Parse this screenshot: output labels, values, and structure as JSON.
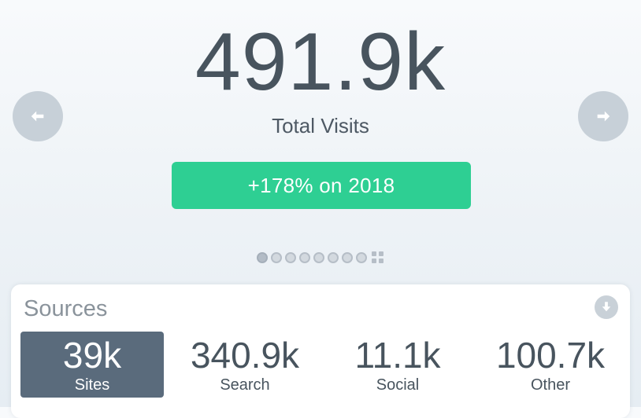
{
  "hero": {
    "value": "491.9k",
    "label": "Total Visits",
    "growth": "+178% on 2018"
  },
  "navigation": {
    "prev_icon": "arrow-left-icon",
    "next_icon": "arrow-right-icon"
  },
  "pager": {
    "dot_count": 8,
    "active_index": 0,
    "more_icon": "grid-dots-icon"
  },
  "sources": {
    "title": "Sources",
    "action_icon": "download-icon",
    "tiles": [
      {
        "value": "39k",
        "label": "Sites",
        "active": true
      },
      {
        "value": "340.9k",
        "label": "Search",
        "active": false
      },
      {
        "value": "11.1k",
        "label": "Social",
        "active": false
      },
      {
        "value": "100.7k",
        "label": "Other",
        "active": false
      }
    ]
  },
  "colors": {
    "accent_green": "#2ecf93",
    "active_tile": "#5a6b7c",
    "text_dark": "#48545e",
    "nav_button": "#c7d0d8"
  }
}
